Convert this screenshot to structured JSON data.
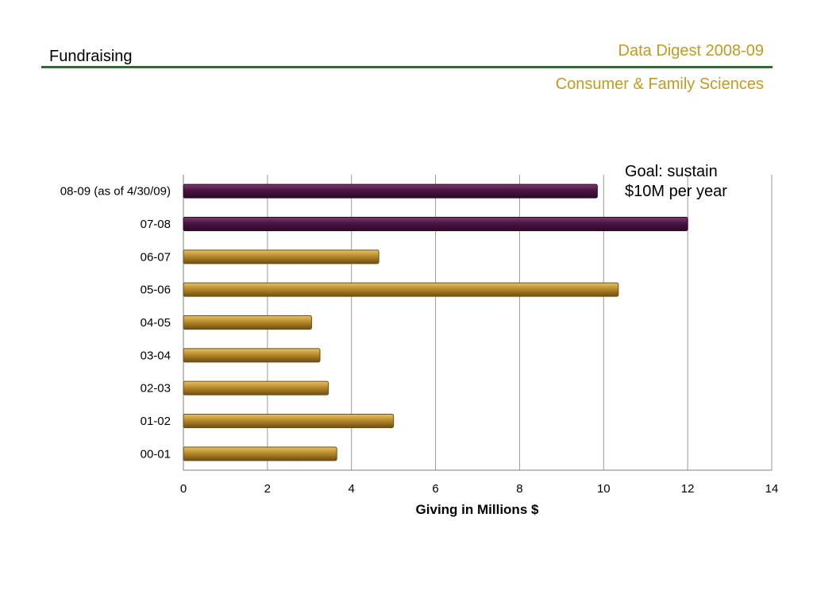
{
  "header": {
    "section_title": "Fundraising",
    "report_title": "Data Digest 2008-09",
    "college_name": "Consumer & Family Sciences"
  },
  "colors": {
    "accent_gold": "#c49a22",
    "rule_green": "#1f7a1f",
    "bar_purple": "#4a1440",
    "bar_gold": "#b88a2a"
  },
  "chart_data": {
    "type": "bar",
    "orientation": "horizontal",
    "categories": [
      "08-09 (as of 4/30/09)",
      "07-08",
      "06-07",
      "05-06",
      "04-05",
      "03-04",
      "02-03",
      "01-02",
      "00-01"
    ],
    "values": [
      9.85,
      12.0,
      4.65,
      10.35,
      3.05,
      3.25,
      3.45,
      5.0,
      3.65
    ],
    "bar_colors": [
      "purple",
      "purple",
      "gold",
      "gold",
      "gold",
      "gold",
      "gold",
      "gold",
      "gold"
    ],
    "x_ticks": [
      "0",
      "2",
      "4",
      "6",
      "8",
      "10",
      "12",
      "14"
    ],
    "xlim": [
      0,
      14
    ],
    "xlabel": "Giving in Millions $",
    "ylabel": "",
    "grid": "vertical",
    "annotation": {
      "line1": "Goal: sustain",
      "line2": "$10M per year"
    }
  }
}
